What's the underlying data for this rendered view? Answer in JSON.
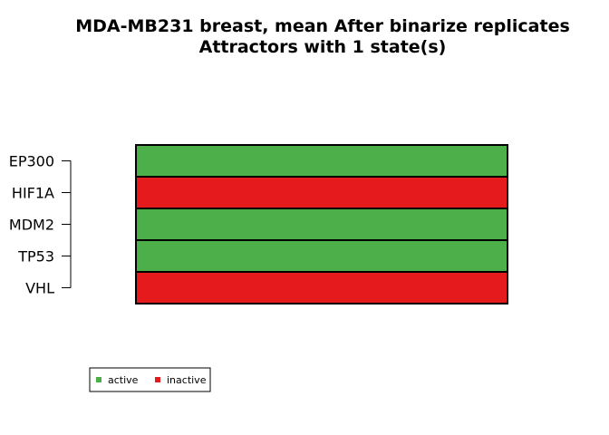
{
  "chart_data": {
    "type": "heatmap",
    "title": "MDA-MB231 breast, mean After binarize replicates",
    "subtitle": "Attractors with 1 state(s)",
    "genes": [
      "EP300",
      "HIF1A",
      "MDM2",
      "TP53",
      "VHL"
    ],
    "states": [
      1
    ],
    "values": [
      [
        1
      ],
      [
        0
      ],
      [
        1
      ],
      [
        1
      ],
      [
        0
      ]
    ],
    "legend": [
      {
        "label": "active",
        "value": 1,
        "color": "#4daf4a"
      },
      {
        "label": "inactive",
        "value": 0,
        "color": "#e41a1c"
      }
    ],
    "legend_position": "bottom-left"
  }
}
